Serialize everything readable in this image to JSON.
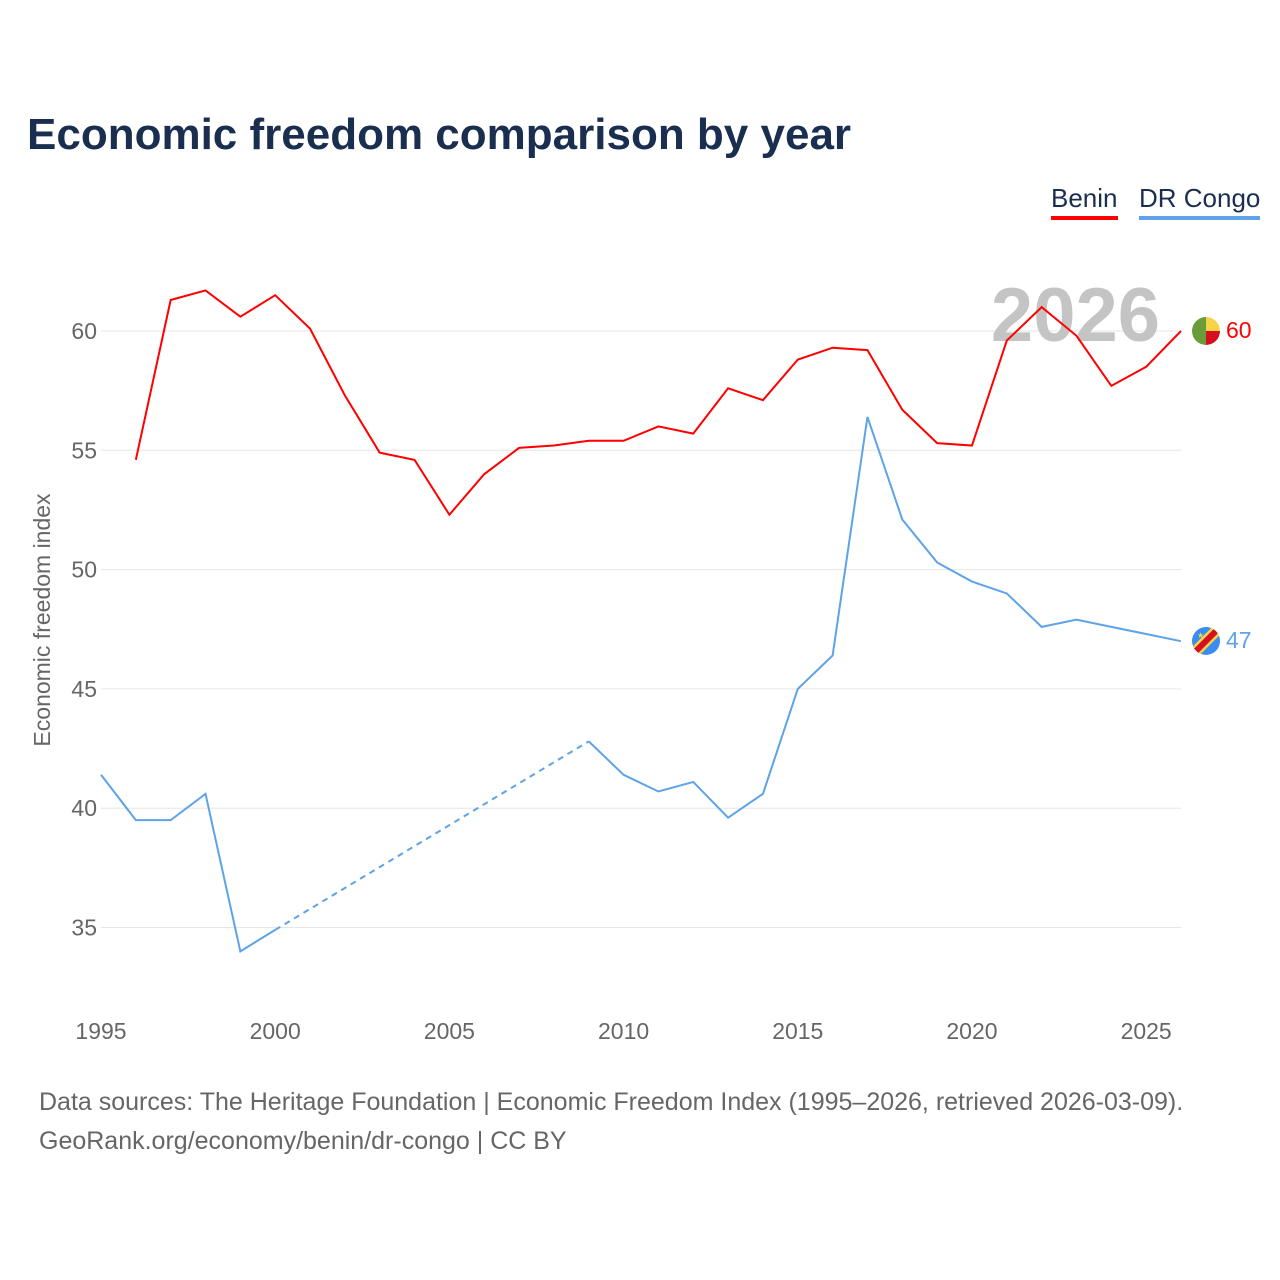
{
  "chart_data": {
    "type": "line",
    "title": "Economic freedom comparison by year",
    "xlabel": "",
    "ylabel": "Economic freedom index",
    "x": [
      1995,
      1996,
      1997,
      1998,
      1999,
      2000,
      2001,
      2002,
      2003,
      2004,
      2005,
      2006,
      2007,
      2008,
      2009,
      2010,
      2011,
      2012,
      2013,
      2014,
      2015,
      2016,
      2017,
      2018,
      2019,
      2020,
      2021,
      2022,
      2023,
      2024,
      2025,
      2026
    ],
    "xlim": [
      1995,
      2026
    ],
    "ylim": [
      32.5,
      63
    ],
    "xticks": [
      "1995",
      "2000",
      "2005",
      "2010",
      "2015",
      "2020",
      "2025"
    ],
    "yticks": [
      "35",
      "40",
      "45",
      "50",
      "55",
      "60"
    ],
    "grid": true,
    "legend_position": "top-right",
    "year_watermark": "2026",
    "series": [
      {
        "name": "Benin",
        "color": "#ff0000",
        "end_label": "60",
        "values": [
          null,
          54.6,
          61.3,
          61.7,
          60.6,
          61.5,
          60.1,
          57.3,
          54.9,
          54.6,
          52.3,
          54.0,
          55.1,
          55.2,
          55.4,
          55.4,
          56.0,
          55.7,
          57.6,
          57.1,
          58.8,
          59.3,
          59.2,
          56.7,
          55.3,
          55.2,
          59.6,
          61.0,
          59.8,
          57.7,
          58.5,
          60.0
        ]
      },
      {
        "name": "DR Congo",
        "color": "#5ea3e8",
        "end_label": "47",
        "values": [
          41.4,
          39.5,
          39.5,
          40.6,
          34.0,
          34.9,
          null,
          null,
          null,
          null,
          null,
          null,
          null,
          null,
          42.8,
          41.4,
          40.7,
          41.1,
          39.6,
          40.6,
          45.0,
          46.4,
          56.4,
          52.1,
          50.3,
          49.5,
          49.0,
          47.6,
          47.9,
          47.6,
          47.3,
          47.0
        ]
      }
    ]
  },
  "footer": {
    "line1": "Data sources: The Heritage Foundation | Economic Freedom Index (1995–2026, retrieved 2026-03-09).",
    "line2": "GeoRank.org/economy/benin/dr-congo | CC BY"
  }
}
